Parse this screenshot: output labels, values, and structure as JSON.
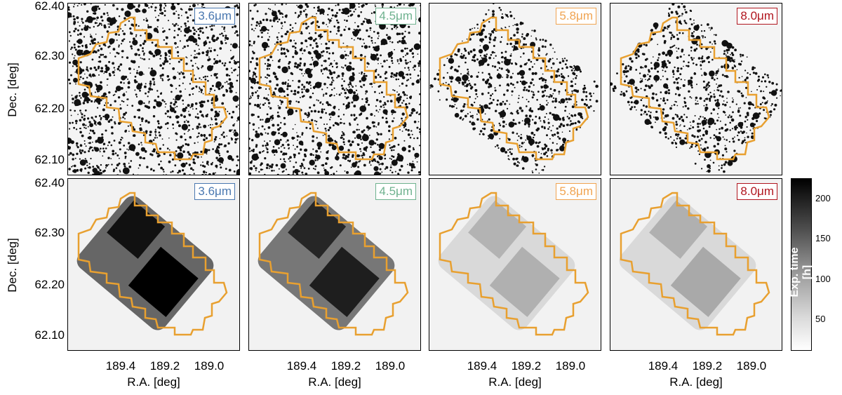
{
  "figure": {
    "y_axis_label": "Dec. [deg]",
    "x_axis_label": "R.A. [deg]",
    "y_ticks": [
      "62.40",
      "62.30",
      "62.20",
      "62.10"
    ],
    "x_ticks": [
      "189.4",
      "189.2",
      "189.0"
    ],
    "colorbar": {
      "label": "Exp. time [h]",
      "ticks": [
        "200",
        "150",
        "100",
        "50"
      ]
    },
    "bands": [
      {
        "label": "3.6μm",
        "color": "#4a78b0"
      },
      {
        "label": "4.5μm",
        "color": "#6fb28f"
      },
      {
        "label": "5.8μm",
        "color": "#f0a452"
      },
      {
        "label": "8.0μm",
        "color": "#b0151e"
      }
    ],
    "outline_color": "#e8a030"
  }
}
